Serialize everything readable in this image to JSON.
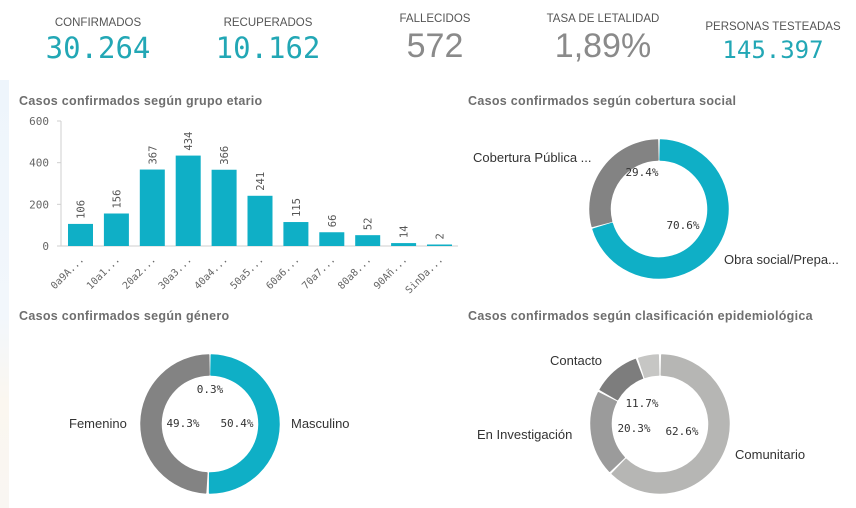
{
  "kpis": [
    {
      "label": "CONFIRMADOS",
      "value": "30.264",
      "color": "#22a7b5"
    },
    {
      "label": "RECUPERADOS",
      "value": "10.162",
      "color": "#22a7b5"
    },
    {
      "label": "FALLECIDOS",
      "value": "572",
      "color": "#8a8a8a"
    },
    {
      "label": "TASA DE LETALIDAD",
      "value": "1,89%",
      "color": "#8a8a8a"
    },
    {
      "label": "PERSONAS TESTEADAS",
      "value": "145.397",
      "color": "#22a7b5"
    }
  ],
  "panels": {
    "age": {
      "title": "Casos confirmados según grupo etario"
    },
    "coverage": {
      "title": "Casos confirmados según cobertura social"
    },
    "gender": {
      "title": "Casos confirmados según género"
    },
    "epi": {
      "title": "Casos confirmados según clasificación epidemiológica"
    }
  },
  "colors": {
    "teal": "#0fafc6",
    "gray": "#838383",
    "epi_comunitario": "#b6b6b4",
    "epi_investigacion": "#9b9b9b",
    "epi_contacto": "#7d7d7d",
    "epi_other": "#c6c6c4"
  },
  "chart_data": [
    {
      "type": "bar",
      "title": "Casos confirmados según grupo etario",
      "categories": [
        "0 a 9 A...",
        "10 a 1...",
        "20 a 2...",
        "30 a 3...",
        "40 a 4...",
        "50 a 5...",
        "60 a 6...",
        "70 a 7...",
        "80 a 8...",
        "90 Añ...",
        "Sin Da..."
      ],
      "values": [
        106,
        156,
        367,
        434,
        366,
        241,
        115,
        66,
        52,
        14,
        2
      ],
      "value_labels": [
        "106",
        "156",
        "367",
        "434",
        "366",
        "241",
        "115",
        "66",
        "52",
        "14",
        "2"
      ],
      "yticks": [
        "0",
        "200",
        "400",
        "600"
      ],
      "ylim": [
        0,
        600
      ],
      "xlabel": "",
      "ylabel": "",
      "grid": false,
      "legend": "none"
    },
    {
      "type": "pie",
      "donut": true,
      "title": "Casos confirmados según cobertura social",
      "categories": [
        "Cobertura Pública ...",
        "Obra social/Prepa..."
      ],
      "values": [
        29.4,
        70.6
      ],
      "value_labels": [
        "29.4%",
        "70.6%"
      ]
    },
    {
      "type": "pie",
      "donut": true,
      "title": "Casos confirmados según género",
      "categories": [
        "Masculino",
        "(sin etiqueta)",
        "Femenino"
      ],
      "values": [
        50.4,
        0.3,
        49.3
      ],
      "value_labels": [
        "50.4%",
        "0.3%",
        "49.3%"
      ],
      "legend_labels": [
        "Femenino",
        "Masculino"
      ]
    },
    {
      "type": "pie",
      "donut": true,
      "title": "Casos confirmados según clasificación epidemiológica",
      "categories": [
        "Comunitario",
        "En Investigación",
        "Contacto",
        "(sin etiqueta)"
      ],
      "values": [
        62.6,
        20.3,
        11.7,
        5.4
      ],
      "value_labels": [
        "62.6%",
        "20.3%",
        "11.7%",
        ""
      ]
    }
  ]
}
